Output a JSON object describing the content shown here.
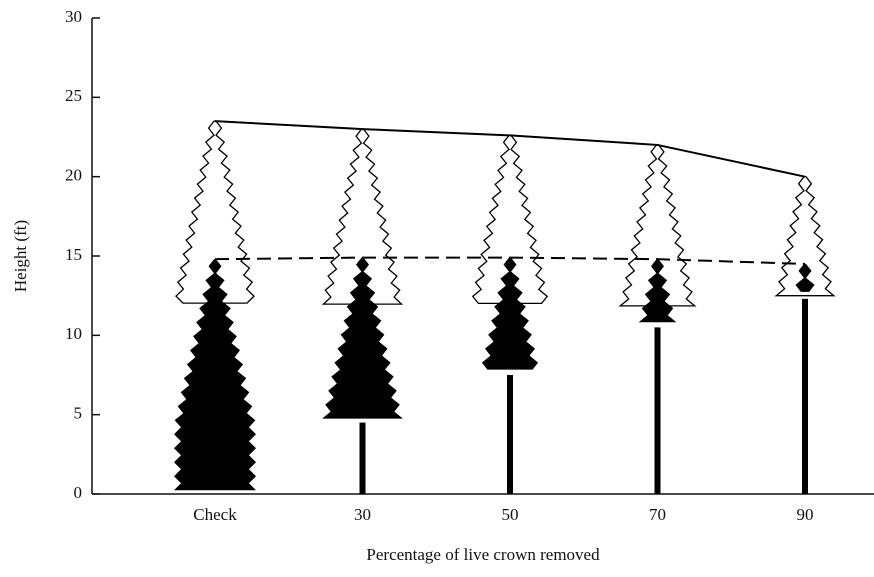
{
  "chart_data": {
    "type": "tree",
    "x_label": "Percentage of live crown removed",
    "y_label": "Height (ft)",
    "categories": [
      "Check",
      "30",
      "50",
      "70",
      "90"
    ],
    "series": [
      {
        "color": "#000000",
        "style": "solid",
        "values": [
          23.5,
          23,
          22.6,
          22,
          20
        ]
      },
      {
        "color": "#000000",
        "style": "dashed",
        "values": [
          14.8,
          14.9,
          14.9,
          14.8,
          14.5
        ]
      },
      {
        "color": "#000000",
        "style": "none",
        "values": [
          0,
          4.5,
          7.5,
          10.5,
          12.3
        ]
      }
    ],
    "ylim": [
      0,
      30
    ],
    "yticks": [
      0,
      5,
      10,
      15,
      20,
      25,
      30
    ]
  }
}
